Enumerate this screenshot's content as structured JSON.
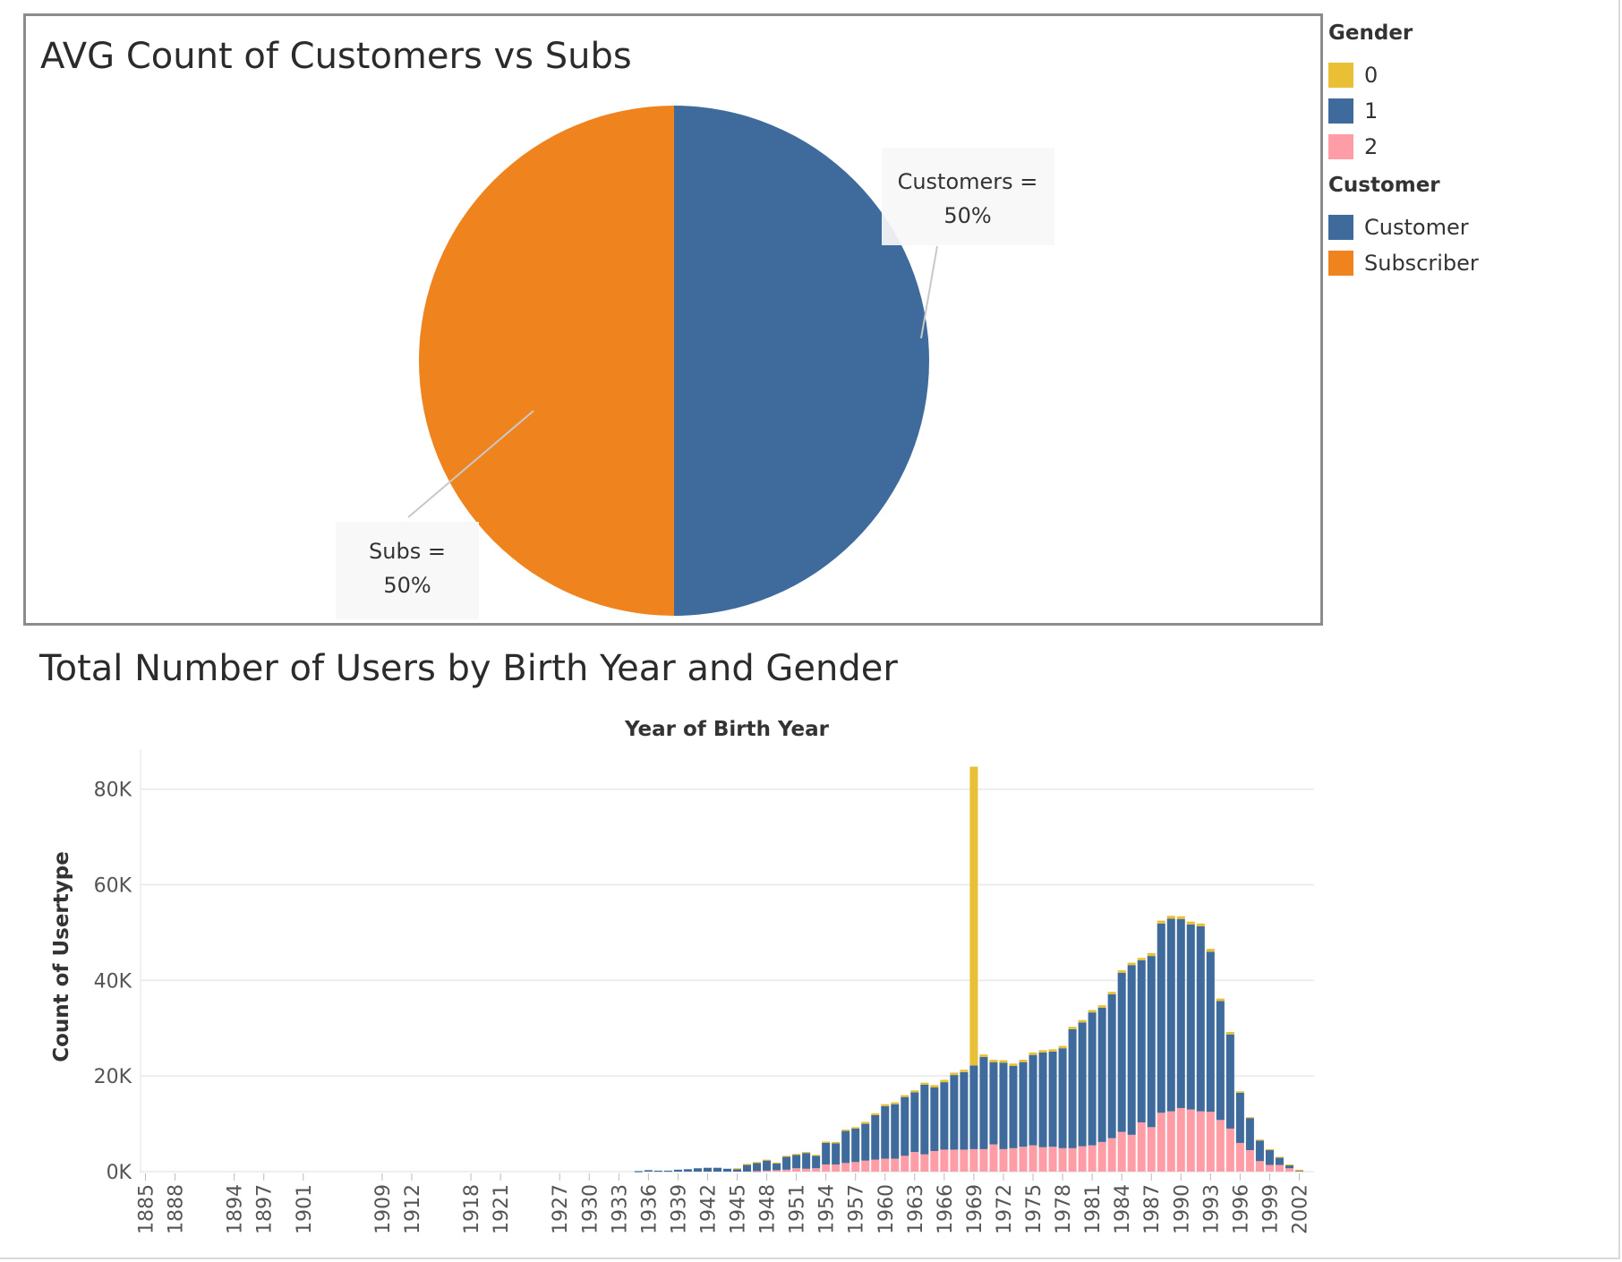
{
  "legend": {
    "gender": {
      "title": "Gender",
      "items": [
        {
          "label": "0",
          "color": "#E9BF35"
        },
        {
          "label": "1",
          "color": "#3E6B9C"
        },
        {
          "label": "2",
          "color": "#FF9DA7"
        }
      ]
    },
    "customer": {
      "title": "Customer",
      "items": [
        {
          "label": "Customer",
          "color": "#3E6B9C"
        },
        {
          "label": "Subscriber",
          "color": "#EF841F"
        }
      ]
    }
  },
  "chart_data": [
    {
      "type": "pie",
      "title": "AVG Count of Customers vs Subs",
      "slices": [
        {
          "label": "Customer",
          "value": 50,
          "color": "#3E6B9C",
          "annotation_line1": "Customers =",
          "annotation_line2": "50%"
        },
        {
          "label": "Subscriber",
          "value": 50,
          "color": "#EF841F",
          "annotation_line1": "Subs =",
          "annotation_line2": "50%"
        }
      ]
    },
    {
      "type": "bar",
      "stacked": true,
      "title": "Total Number of Users by Birth Year and Gender",
      "xlabel": "Year of Birth Year",
      "ylabel": "Count of Usertype",
      "ylim": [
        0,
        85000
      ],
      "yticks": [
        0,
        20000,
        40000,
        60000,
        80000
      ],
      "ytick_labels": [
        "0K",
        "20K",
        "40K",
        "60K",
        "80K"
      ],
      "grid": true,
      "categories": [
        "1885",
        "1888",
        "1894",
        "1897",
        "1901",
        "1909",
        "1912",
        "1918",
        "1921",
        "1927",
        "1930",
        "1933",
        "1936",
        "1939",
        "1942",
        "1945",
        "1948",
        "1951",
        "1954",
        "1957",
        "1960",
        "1963",
        "1966",
        "1969",
        "1972",
        "1975",
        "1978",
        "1981",
        "1984",
        "1987",
        "1990",
        "1993",
        "1996",
        "1999",
        "2002"
      ],
      "x": [
        1885,
        1888,
        1894,
        1897,
        1900,
        1901,
        1906,
        1909,
        1912,
        1917,
        1918,
        1920,
        1921,
        1922,
        1927,
        1930,
        1933,
        1934,
        1935,
        1936,
        1937,
        1938,
        1939,
        1940,
        1941,
        1942,
        1943,
        1944,
        1945,
        1946,
        1947,
        1948,
        1949,
        1950,
        1951,
        1952,
        1953,
        1954,
        1955,
        1956,
        1957,
        1958,
        1959,
        1960,
        1961,
        1962,
        1963,
        1964,
        1965,
        1966,
        1967,
        1968,
        1969,
        1970,
        1971,
        1972,
        1973,
        1974,
        1975,
        1976,
        1977,
        1978,
        1979,
        1980,
        1981,
        1982,
        1983,
        1984,
        1985,
        1986,
        1987,
        1988,
        1989,
        1990,
        1991,
        1992,
        1993,
        1994,
        1995,
        1996,
        1997,
        1998,
        1999,
        2000,
        2001,
        2002,
        2003
      ],
      "series": [
        {
          "name": "2",
          "color": "#FF9DA7",
          "values": [
            0,
            0,
            0,
            0,
            0,
            0,
            0,
            0,
            0,
            0,
            0,
            0,
            0,
            0,
            0,
            0,
            0,
            0,
            0,
            0,
            0,
            0,
            0,
            0,
            0,
            0,
            0,
            0,
            0,
            0,
            100,
            200,
            300,
            400,
            700,
            600,
            700,
            1500,
            1500,
            1800,
            2000,
            2300,
            2500,
            2700,
            2700,
            3300,
            4100,
            3600,
            4300,
            4600,
            4600,
            4600,
            4700,
            4700,
            5700,
            4700,
            4900,
            5200,
            5500,
            5100,
            5200,
            4900,
            4900,
            5300,
            5500,
            6200,
            7000,
            8300,
            7700,
            10300,
            9300,
            12300,
            12600,
            13300,
            13000,
            12600,
            12500,
            10800,
            9000,
            6000,
            4500,
            2200,
            1400,
            1400,
            700,
            200,
            0
          ]
        },
        {
          "name": "1",
          "color": "#3E6B9C",
          "values": [
            0,
            0,
            0,
            0,
            0,
            0,
            0,
            0,
            0,
            0,
            0,
            0,
            0,
            0,
            0,
            0,
            0,
            0,
            100,
            300,
            200,
            200,
            400,
            500,
            700,
            800,
            800,
            600,
            500,
            1500,
            1800,
            2200,
            1500,
            2700,
            2800,
            3300,
            2600,
            4500,
            4400,
            6700,
            7000,
            7700,
            9300,
            11000,
            11400,
            12300,
            12500,
            14600,
            13300,
            14100,
            15600,
            16200,
            17500,
            19300,
            17200,
            18100,
            17200,
            17700,
            18900,
            19800,
            19900,
            20900,
            24900,
            25900,
            27800,
            28100,
            30100,
            33300,
            35500,
            33900,
            35800,
            39600,
            40300,
            39500,
            38700,
            38700,
            33500,
            24900,
            19700,
            10500,
            6700,
            4300,
            3200,
            1600,
            700,
            100,
            0
          ]
        },
        {
          "name": "0",
          "color": "#E9BF35",
          "values": [
            0,
            0,
            0,
            0,
            0,
            0,
            0,
            0,
            0,
            0,
            0,
            0,
            0,
            0,
            0,
            0,
            0,
            0,
            0,
            0,
            0,
            0,
            0,
            0,
            0,
            0,
            0,
            0,
            200,
            100,
            100,
            100,
            100,
            200,
            200,
            200,
            200,
            300,
            300,
            300,
            300,
            400,
            400,
            400,
            400,
            400,
            400,
            400,
            500,
            500,
            500,
            500,
            62500,
            500,
            500,
            500,
            500,
            500,
            500,
            500,
            500,
            500,
            500,
            500,
            500,
            500,
            500,
            500,
            500,
            500,
            600,
            600,
            600,
            600,
            600,
            600,
            600,
            500,
            500,
            300,
            200,
            200,
            100,
            100,
            100,
            100,
            0
          ]
        }
      ]
    }
  ]
}
